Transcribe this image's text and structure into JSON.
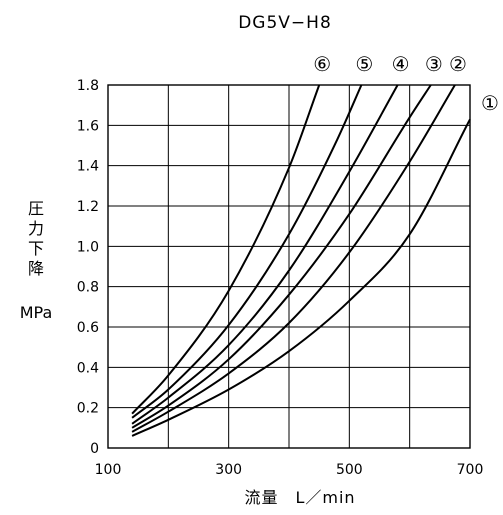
{
  "chart_data": {
    "type": "line",
    "title": "DG5V−H8",
    "xlabel": "流量　L／min",
    "ylabel_chars": [
      "圧",
      "力",
      "下",
      "降"
    ],
    "ylabel_unit": "MPa",
    "xlim": [
      100,
      700
    ],
    "ylim": [
      0,
      1.8
    ],
    "x_ticks": [
      100,
      300,
      500,
      700
    ],
    "x_tick_labels": [
      "100",
      "300",
      "500",
      "700"
    ],
    "x_grid": [
      100,
      200,
      300,
      400,
      500,
      600,
      700
    ],
    "y_ticks": [
      0,
      0.2,
      0.4,
      0.6,
      0.8,
      1.0,
      1.2,
      1.4,
      1.6,
      1.8
    ],
    "y_tick_labels": [
      "0",
      "0.2",
      "0.4",
      "0.6",
      "0.8",
      "1.0",
      "1.2",
      "1.4",
      "1.6",
      "1.8"
    ],
    "grid": true,
    "series": [
      {
        "name": "①",
        "x": [
          140,
          200,
          300,
          400,
          500,
          600,
          700
        ],
        "y": [
          0.06,
          0.14,
          0.29,
          0.48,
          0.73,
          1.06,
          1.63
        ]
      },
      {
        "name": "②",
        "x": [
          140,
          200,
          300,
          400,
          500,
          600,
          675
        ],
        "y": [
          0.08,
          0.18,
          0.37,
          0.62,
          0.97,
          1.42,
          1.8
        ]
      },
      {
        "name": "③",
        "x": [
          140,
          200,
          300,
          400,
          500,
          600,
          635
        ],
        "y": [
          0.1,
          0.21,
          0.44,
          0.76,
          1.16,
          1.64,
          1.8
        ]
      },
      {
        "name": "④",
        "x": [
          140,
          200,
          300,
          400,
          500,
          580
        ],
        "y": [
          0.12,
          0.25,
          0.51,
          0.88,
          1.37,
          1.8
        ]
      },
      {
        "name": "⑤",
        "x": [
          140,
          200,
          300,
          400,
          480,
          520
        ],
        "y": [
          0.15,
          0.29,
          0.61,
          1.06,
          1.53,
          1.8
        ]
      },
      {
        "name": "⑥",
        "x": [
          140,
          200,
          300,
          400,
          450
        ],
        "y": [
          0.17,
          0.36,
          0.78,
          1.39,
          1.8
        ]
      }
    ]
  }
}
